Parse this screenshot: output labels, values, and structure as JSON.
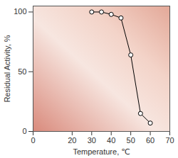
{
  "chart_data": {
    "type": "line",
    "x": [
      30,
      35,
      40,
      45,
      50,
      55,
      60
    ],
    "values": [
      100,
      100,
      98,
      95,
      64,
      15,
      7
    ],
    "xlabel": "Temperature, ℃",
    "ylabel": "Residual Activity, %",
    "xlim": [
      0,
      70
    ],
    "xticks": [
      0,
      20,
      30,
      40,
      50,
      60,
      70
    ],
    "ylim": [
      0,
      105
    ],
    "yticks": [
      0,
      50,
      100
    ],
    "color": "#000000",
    "marker": "circle",
    "grid": false
  }
}
